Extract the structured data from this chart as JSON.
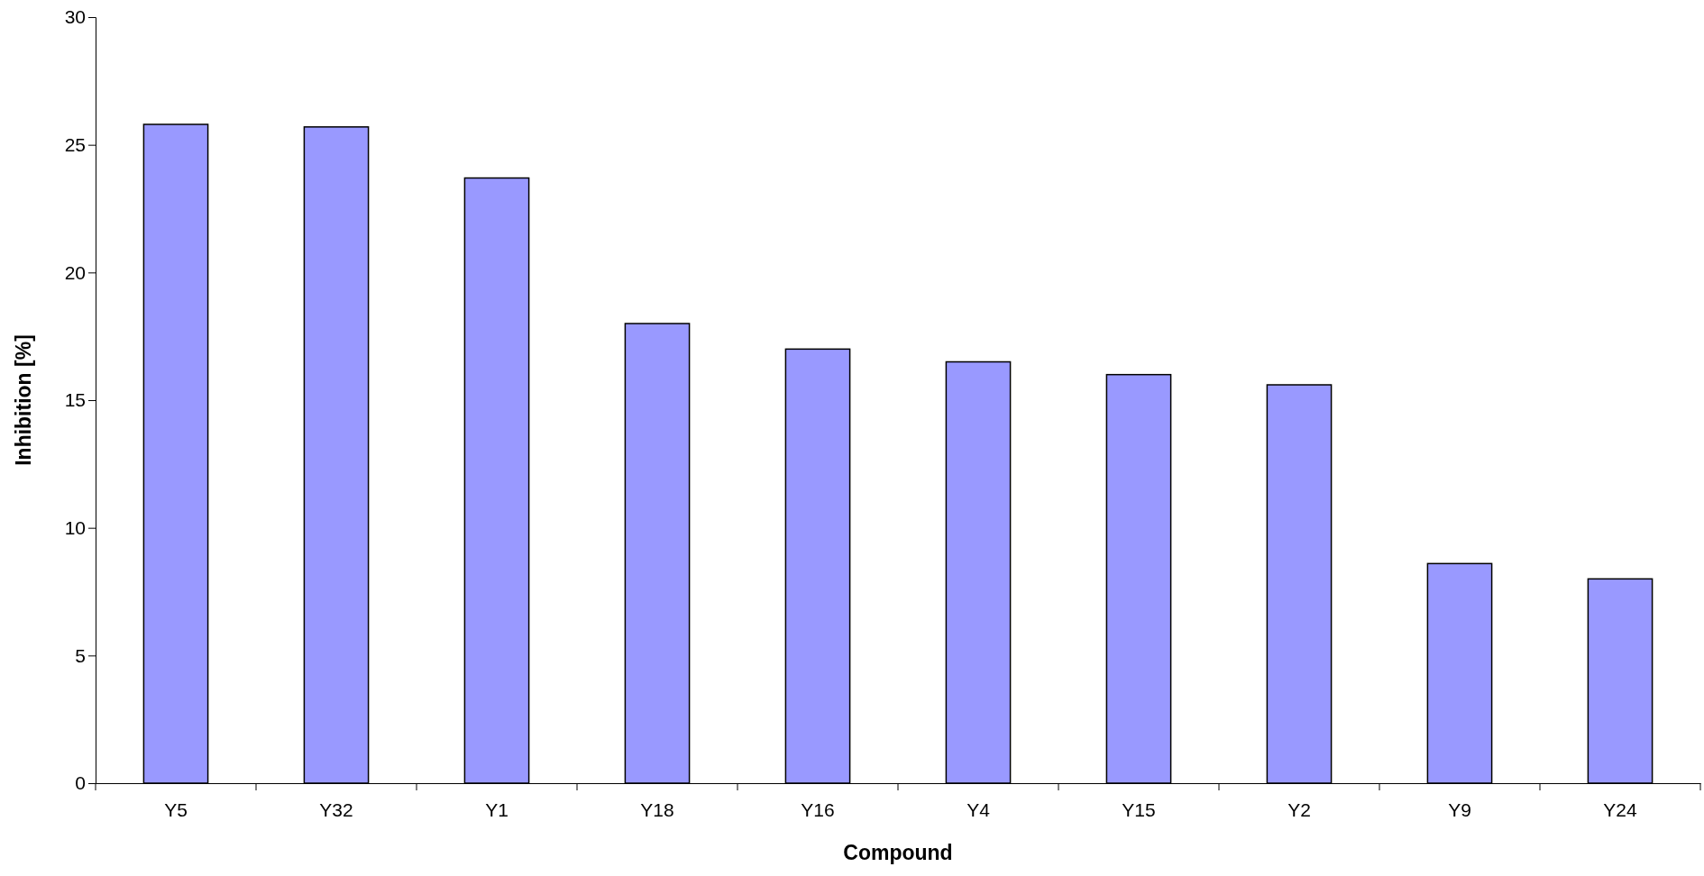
{
  "chart_data": {
    "type": "bar",
    "xlabel": "Compound",
    "ylabel": "Inhibition [%]",
    "categories": [
      "Y5",
      "Y32",
      "Y1",
      "Y18",
      "Y16",
      "Y4",
      "Y15",
      "Y2",
      "Y9",
      "Y24"
    ],
    "values": [
      25.8,
      25.7,
      23.7,
      18.0,
      17.0,
      16.5,
      16.0,
      15.6,
      8.6,
      8.0
    ],
    "color": "#9999ff",
    "ylim": [
      0,
      30
    ],
    "yticks": [
      0,
      5,
      10,
      15,
      20,
      25,
      30
    ],
    "grid": false
  }
}
